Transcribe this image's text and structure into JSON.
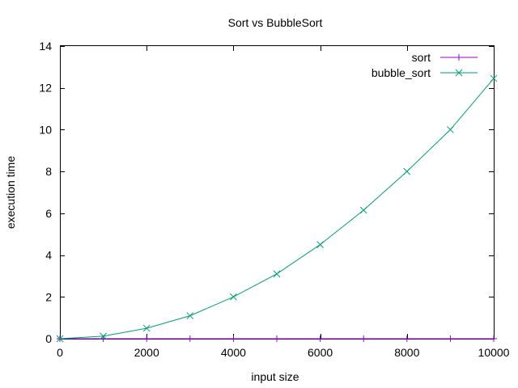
{
  "chart_data": {
    "type": "line",
    "title": "Sort vs BubbleSort",
    "xlabel": "input size",
    "ylabel": "execution time",
    "xlim": [
      0,
      10000
    ],
    "ylim": [
      0,
      14
    ],
    "xticks": [
      0,
      2000,
      4000,
      6000,
      8000,
      10000
    ],
    "yticks": [
      0,
      2,
      4,
      6,
      8,
      10,
      12,
      14
    ],
    "grid": false,
    "legend_position": "top-right",
    "x": [
      0,
      1000,
      2000,
      3000,
      4000,
      5000,
      6000,
      7000,
      8000,
      9000,
      10000
    ],
    "series": [
      {
        "name": "sort",
        "color": "#9400d3",
        "marker": "plus",
        "values": [
          0,
          0,
          0,
          0,
          0,
          0,
          0,
          0,
          0,
          0,
          0
        ]
      },
      {
        "name": "bubble_sort",
        "color": "#009e73",
        "marker": "x",
        "values": [
          0,
          0.12,
          0.5,
          1.1,
          2.0,
          3.1,
          4.5,
          6.15,
          8.0,
          10.0,
          12.45
        ]
      }
    ]
  }
}
